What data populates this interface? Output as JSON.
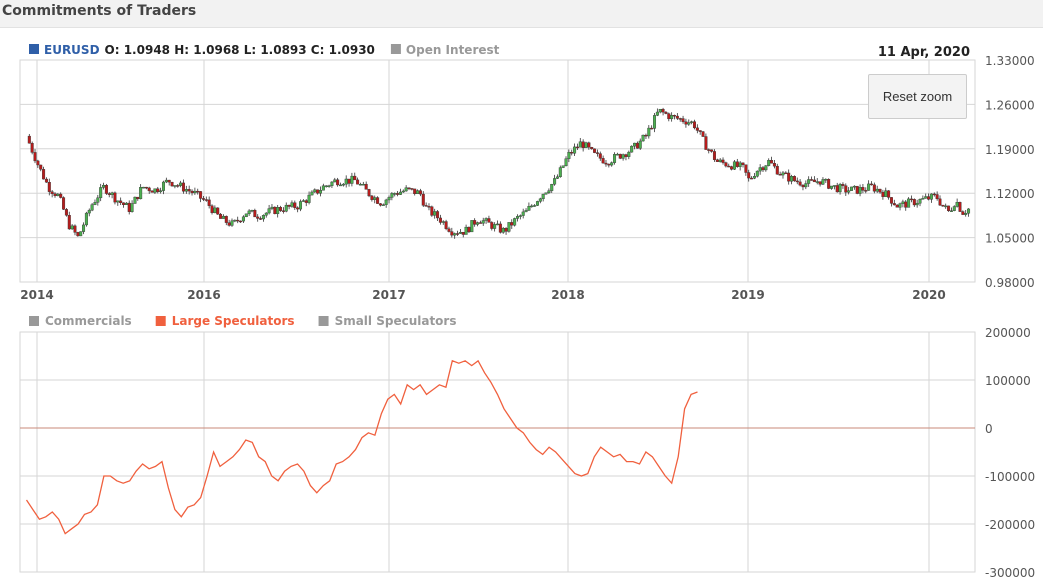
{
  "header": {
    "title": "Commitments of Traders"
  },
  "reset_zoom_label": "Reset zoom",
  "colors": {
    "up": "#4caf50",
    "down": "#b71c1c",
    "large_speculators": "#f0603e",
    "inactive_legend": "#999999",
    "symbol": "#2f5fa8",
    "grid": "#d6d6d6"
  },
  "chart_data": [
    {
      "type": "candlestick",
      "legend": [
        {
          "name": "EURUSD",
          "ohlc_text": "O: 1.0948 H: 1.0968 L: 1.0893 C: 1.0930",
          "active": true
        },
        {
          "name": "Open Interest",
          "active": false
        }
      ],
      "date_label": "11 Apr, 2020",
      "x_tick_labels": [
        "2014",
        "2016",
        "2017",
        "2018",
        "2019",
        "2020"
      ],
      "y_tick_labels": [
        "1.33000",
        "1.26000",
        "1.19000",
        "1.12000",
        "1.05000",
        "0.98000"
      ],
      "ylim": [
        0.98,
        1.33
      ],
      "close_anchors": [
        [
          2013.95,
          1.21
        ],
        [
          2014.05,
          1.16
        ],
        [
          2014.12,
          1.13
        ],
        [
          2014.2,
          1.115
        ],
        [
          2014.28,
          1.07
        ],
        [
          2014.35,
          1.05
        ],
        [
          2014.45,
          1.1
        ],
        [
          2014.55,
          1.13
        ],
        [
          2014.65,
          1.11
        ],
        [
          2014.75,
          1.095
        ],
        [
          2014.85,
          1.13
        ],
        [
          2014.95,
          1.125
        ],
        [
          2015.05,
          1.14
        ],
        [
          2015.15,
          1.13
        ],
        [
          2015.25,
          1.12
        ],
        [
          2015.35,
          1.105
        ],
        [
          2015.45,
          1.08
        ],
        [
          2015.55,
          1.07
        ],
        [
          2015.65,
          1.09
        ],
        [
          2015.75,
          1.085
        ],
        [
          2015.9,
          1.095
        ],
        [
          2016.05,
          1.1
        ],
        [
          2016.15,
          1.115
        ],
        [
          2016.25,
          1.13
        ],
        [
          2016.35,
          1.14
        ],
        [
          2016.5,
          1.14
        ],
        [
          2016.6,
          1.12
        ],
        [
          2016.7,
          1.105
        ],
        [
          2016.8,
          1.12
        ],
        [
          2016.9,
          1.125
        ],
        [
          2017.0,
          1.12
        ],
        [
          2017.05,
          1.095
        ],
        [
          2017.15,
          1.08
        ],
        [
          2017.25,
          1.06
        ],
        [
          2017.35,
          1.06
        ],
        [
          2017.45,
          1.08
        ],
        [
          2017.55,
          1.07
        ],
        [
          2017.65,
          1.06
        ],
        [
          2017.75,
          1.08
        ],
        [
          2017.82,
          1.09
        ],
        [
          2017.95,
          1.12
        ],
        [
          2018.05,
          1.14
        ],
        [
          2018.15,
          1.18
        ],
        [
          2018.25,
          1.2
        ],
        [
          2018.35,
          1.18
        ],
        [
          2018.45,
          1.17
        ],
        [
          2018.55,
          1.18
        ],
        [
          2018.65,
          1.19
        ],
        [
          2018.75,
          1.21
        ],
        [
          2018.85,
          1.25
        ],
        [
          2018.95,
          1.24
        ],
        [
          2019.05,
          1.235
        ],
        [
          2019.12,
          1.23
        ],
        [
          2019.2,
          1.2
        ],
        [
          2019.3,
          1.17
        ],
        [
          2019.4,
          1.165
        ],
        [
          2019.5,
          1.16
        ],
        [
          2019.55,
          1.14
        ],
        [
          2019.6,
          1.155
        ],
        [
          2019.7,
          1.17
        ],
        [
          2019.8,
          1.15
        ],
        [
          2019.9,
          1.14
        ],
        [
          2020.0,
          1.135
        ],
        [
          2020.1,
          1.14
        ],
        [
          2020.2,
          1.13
        ],
        [
          2020.3,
          1.125
        ],
        [
          2020.4,
          1.125
        ],
        [
          2020.5,
          1.13
        ],
        [
          2020.6,
          1.12
        ],
        [
          2020.7,
          1.1
        ],
        [
          2020.8,
          1.105
        ],
        [
          2020.9,
          1.11
        ],
        [
          2021.0,
          1.115
        ],
        [
          2021.05,
          1.1
        ],
        [
          2021.1,
          1.09
        ],
        [
          2021.15,
          1.11
        ],
        [
          2021.2,
          1.09
        ],
        [
          2021.25,
          1.095
        ]
      ]
    },
    {
      "type": "line",
      "legend": [
        {
          "name": "Commercials",
          "active": false
        },
        {
          "name": "Large Speculators",
          "active": true
        },
        {
          "name": "Small Speculators",
          "active": false
        }
      ],
      "y_tick_labels": [
        "200000",
        "100000",
        "0",
        "-100000",
        "-200000",
        "-300000"
      ],
      "ylim": [
        -300000,
        200000
      ],
      "zero_line": 0,
      "series": [
        {
          "name": "Large Speculators",
          "points": [
            [
              2013.95,
              -150000
            ],
            [
              2014.0,
              -170000
            ],
            [
              2014.05,
              -190000
            ],
            [
              2014.1,
              -185000
            ],
            [
              2014.15,
              -175000
            ],
            [
              2014.2,
              -190000
            ],
            [
              2014.25,
              -220000
            ],
            [
              2014.3,
              -210000
            ],
            [
              2014.35,
              -200000
            ],
            [
              2014.4,
              -180000
            ],
            [
              2014.45,
              -175000
            ],
            [
              2014.5,
              -160000
            ],
            [
              2014.55,
              -100000
            ],
            [
              2014.6,
              -100000
            ],
            [
              2014.65,
              -110000
            ],
            [
              2014.7,
              -115000
            ],
            [
              2014.75,
              -110000
            ],
            [
              2014.8,
              -90000
            ],
            [
              2014.85,
              -75000
            ],
            [
              2014.9,
              -85000
            ],
            [
              2014.95,
              -80000
            ],
            [
              2015.0,
              -70000
            ],
            [
              2015.05,
              -125000
            ],
            [
              2015.1,
              -170000
            ],
            [
              2015.15,
              -185000
            ],
            [
              2015.2,
              -165000
            ],
            [
              2015.25,
              -160000
            ],
            [
              2015.3,
              -145000
            ],
            [
              2015.35,
              -100000
            ],
            [
              2015.4,
              -50000
            ],
            [
              2015.45,
              -80000
            ],
            [
              2015.5,
              -70000
            ],
            [
              2015.55,
              -60000
            ],
            [
              2015.6,
              -45000
            ],
            [
              2015.65,
              -25000
            ],
            [
              2015.7,
              -30000
            ],
            [
              2015.75,
              -60000
            ],
            [
              2015.8,
              -70000
            ],
            [
              2015.85,
              -100000
            ],
            [
              2015.9,
              -110000
            ],
            [
              2015.95,
              -90000
            ],
            [
              2016.0,
              -80000
            ],
            [
              2016.05,
              -75000
            ],
            [
              2016.1,
              -90000
            ],
            [
              2016.15,
              -120000
            ],
            [
              2016.2,
              -135000
            ],
            [
              2016.25,
              -120000
            ],
            [
              2016.3,
              -110000
            ],
            [
              2016.35,
              -75000
            ],
            [
              2016.4,
              -70000
            ],
            [
              2016.45,
              -60000
            ],
            [
              2016.5,
              -45000
            ],
            [
              2016.55,
              -20000
            ],
            [
              2016.6,
              -10000
            ],
            [
              2016.65,
              -15000
            ],
            [
              2016.7,
              30000
            ],
            [
              2016.75,
              60000
            ],
            [
              2016.8,
              70000
            ],
            [
              2016.85,
              50000
            ],
            [
              2016.9,
              90000
            ],
            [
              2016.95,
              80000
            ],
            [
              2017.0,
              90000
            ],
            [
              2017.05,
              70000
            ],
            [
              2017.1,
              80000
            ],
            [
              2017.15,
              90000
            ],
            [
              2017.2,
              85000
            ],
            [
              2017.25,
              140000
            ],
            [
              2017.3,
              135000
            ],
            [
              2017.35,
              140000
            ],
            [
              2017.4,
              130000
            ],
            [
              2017.45,
              140000
            ],
            [
              2017.5,
              115000
            ],
            [
              2017.55,
              95000
            ],
            [
              2017.6,
              70000
            ],
            [
              2017.65,
              40000
            ],
            [
              2017.7,
              20000
            ],
            [
              2017.75,
              0
            ],
            [
              2017.8,
              -10000
            ],
            [
              2017.85,
              -30000
            ],
            [
              2017.9,
              -45000
            ],
            [
              2017.95,
              -55000
            ],
            [
              2018.0,
              -40000
            ],
            [
              2018.05,
              -50000
            ],
            [
              2018.1,
              -65000
            ],
            [
              2018.15,
              -80000
            ],
            [
              2018.2,
              -95000
            ],
            [
              2018.25,
              -100000
            ],
            [
              2018.3,
              -95000
            ],
            [
              2018.35,
              -60000
            ],
            [
              2018.4,
              -40000
            ],
            [
              2018.45,
              -50000
            ],
            [
              2018.5,
              -60000
            ],
            [
              2018.55,
              -55000
            ],
            [
              2018.6,
              -70000
            ],
            [
              2018.65,
              -70000
            ],
            [
              2018.7,
              -75000
            ],
            [
              2018.75,
              -50000
            ],
            [
              2018.8,
              -60000
            ],
            [
              2018.85,
              -80000
            ],
            [
              2018.9,
              -100000
            ],
            [
              2018.95,
              -115000
            ],
            [
              2019.0,
              -60000
            ],
            [
              2019.05,
              40000
            ],
            [
              2019.1,
              70000
            ],
            [
              2019.15,
              75000
            ]
          ]
        }
      ]
    }
  ]
}
